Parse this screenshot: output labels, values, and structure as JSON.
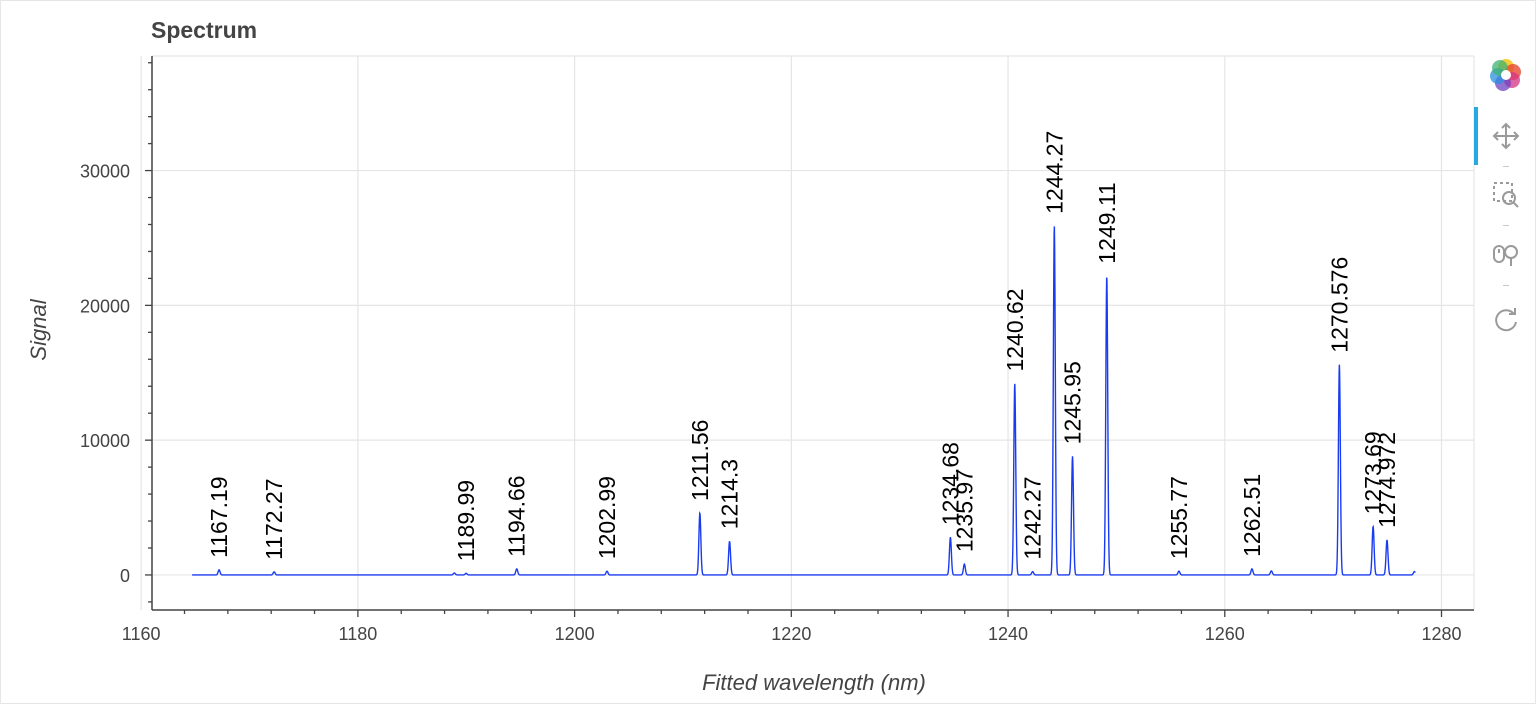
{
  "title": "Spectrum",
  "colors": {
    "line": "#1a3cf0",
    "grid": "#e5e5e5",
    "axis": "#444444",
    "label": "#000000"
  },
  "toolbar": {
    "logo": "bokeh-logo-icon",
    "tools": [
      {
        "name": "pan-tool",
        "icon": "move-arrows-icon",
        "active": true
      },
      {
        "name": "box-zoom-tool",
        "icon": "box-zoom-icon",
        "active": false
      },
      {
        "name": "wheel-zoom-tool",
        "icon": "wheel-zoom-icon",
        "active": false
      },
      {
        "name": "reset-tool",
        "icon": "reset-icon",
        "active": false
      }
    ]
  },
  "chart_data": {
    "type": "line",
    "title": "Spectrum",
    "xlabel": "Fitted wavelength (nm)",
    "ylabel": "Signal",
    "xlim": [
      1161,
      1283
    ],
    "ylim": [
      -2600,
      38500
    ],
    "xticks": [
      1160,
      1180,
      1200,
      1220,
      1240,
      1260,
      1280
    ],
    "xtick_labels": [
      "1160",
      "1180",
      "1200",
      "1220",
      "1240",
      "1260",
      "1280"
    ],
    "yticks": [
      0,
      10000,
      20000,
      30000
    ],
    "ytick_labels": [
      "0",
      "10000",
      "20000",
      "30000"
    ],
    "grid": true,
    "x_range": [
      1164.7,
      1277.6
    ],
    "baseline": 0,
    "peaks": [
      {
        "x": 1167.19,
        "y": 380,
        "label": "1167.19"
      },
      {
        "x": 1172.27,
        "y": 230,
        "label": "1172.27"
      },
      {
        "x": 1189.99,
        "y": 120,
        "label": "1189.99"
      },
      {
        "x": 1194.66,
        "y": 450,
        "label": "1194.66"
      },
      {
        "x": 1202.99,
        "y": 280,
        "label": "1202.99"
      },
      {
        "x": 1211.56,
        "y": 4600,
        "label": "1211.56"
      },
      {
        "x": 1214.3,
        "y": 2500,
        "label": "1214.3"
      },
      {
        "x": 1234.68,
        "y": 2800,
        "label": "1234.68"
      },
      {
        "x": 1235.97,
        "y": 800,
        "label": "1235.97"
      },
      {
        "x": 1240.62,
        "y": 14200,
        "label": "1240.62"
      },
      {
        "x": 1242.27,
        "y": 250,
        "label": "1242.27"
      },
      {
        "x": 1244.27,
        "y": 25900,
        "label": "1244.27"
      },
      {
        "x": 1245.95,
        "y": 8800,
        "label": "1245.95"
      },
      {
        "x": 1249.11,
        "y": 22200,
        "label": "1249.11"
      },
      {
        "x": 1255.77,
        "y": 280,
        "label": "1255.77"
      },
      {
        "x": 1262.51,
        "y": 450,
        "label": "1262.51"
      },
      {
        "x": 1270.576,
        "y": 15600,
        "label": "1270.576"
      },
      {
        "x": 1273.69,
        "y": 3600,
        "label": "1273.69"
      },
      {
        "x": 1274.972,
        "y": 2600,
        "label": "1274.972"
      }
    ],
    "minor_peaks": [
      {
        "x": 1188.9,
        "y": 150
      },
      {
        "x": 1264.3,
        "y": 300
      },
      {
        "x": 1277.5,
        "y": 250
      }
    ]
  }
}
